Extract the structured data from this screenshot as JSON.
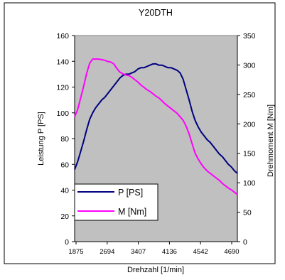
{
  "chart_data": {
    "type": "line",
    "title": "Y20DTH",
    "xlabel": "Drehzahl [1/min]",
    "ylabel": "Leistung P [PS]",
    "y2label": "Drehmoment M [Nm]",
    "x_tick_labels": [
      "1875",
      "2694",
      "3407",
      "4136",
      "4542",
      "4690"
    ],
    "ylim": [
      0,
      160
    ],
    "y_ticks": [
      0,
      20,
      40,
      60,
      80,
      100,
      120,
      140,
      160
    ],
    "y2lim": [
      0,
      350
    ],
    "y2_ticks": [
      0,
      50,
      100,
      150,
      200,
      250,
      300,
      350
    ],
    "legend_position": "lower-left",
    "grid": false,
    "plot_background": "#c0c0c0",
    "series": [
      {
        "name": "P [PS]",
        "axis": "left",
        "color": "#000080",
        "values": [
          56,
          62,
          70,
          78,
          87,
          95,
          100,
          104,
          107,
          110,
          112,
          115,
          118,
          121,
          124,
          127,
          129,
          130,
          130,
          131,
          132,
          134,
          135,
          135,
          136,
          137,
          138,
          138,
          137,
          137,
          136,
          135,
          135,
          134,
          133,
          131,
          126,
          118,
          110,
          101,
          94,
          89,
          85,
          82,
          79,
          77,
          74,
          71,
          68,
          66,
          63,
          60,
          58,
          55,
          53
        ]
      },
      {
        "name": "M [Nm]",
        "axis": "right",
        "color": "#ff00ff",
        "values": [
          212,
          224,
          244,
          264,
          286,
          303,
          310,
          310,
          310,
          309,
          308,
          306,
          305,
          302,
          294,
          288,
          285,
          283,
          282,
          279,
          275,
          271,
          266,
          262,
          258,
          255,
          251,
          247,
          244,
          239,
          234,
          230,
          226,
          222,
          218,
          212,
          206,
          196,
          183,
          166,
          150,
          140,
          132,
          125,
          120,
          116,
          112,
          108,
          104,
          99,
          95,
          91,
          88,
          84,
          80
        ]
      }
    ]
  }
}
